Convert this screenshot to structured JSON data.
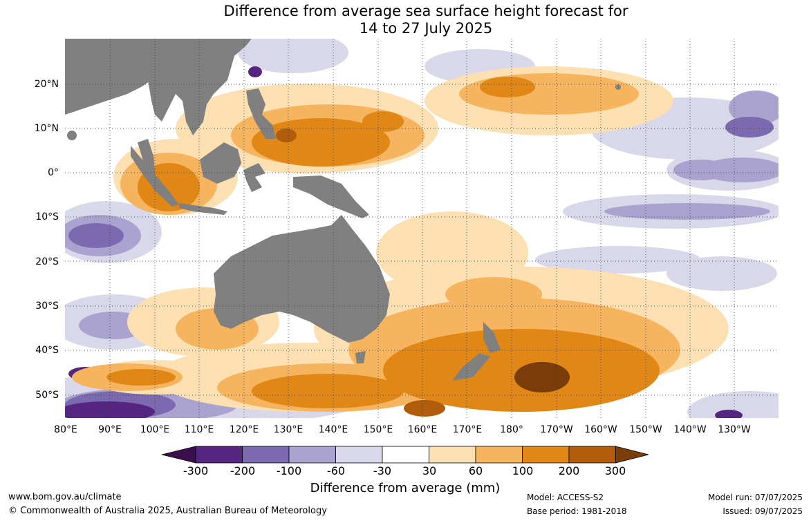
{
  "title": {
    "line1": "Difference from average sea surface height forecast for",
    "line2": "14 to 27 July 2025"
  },
  "lat_labels": [
    "20°N",
    "10°N",
    "0°",
    "10°S",
    "20°S",
    "30°S",
    "40°S",
    "50°S"
  ],
  "lon_labels": [
    "80°E",
    "90°E",
    "100°E",
    "110°E",
    "120°E",
    "130°E",
    "140°E",
    "150°E",
    "160°E",
    "170°E",
    "180°",
    "170°W",
    "160°W",
    "150°W",
    "140°W",
    "130°W"
  ],
  "colorbar": {
    "title": "Difference from average (mm)",
    "labels": [
      "-300",
      "-200",
      "-100",
      "-60",
      "-30",
      "30",
      "60",
      "100",
      "200",
      "300"
    ],
    "colors": [
      "#3b0f4f",
      "#54267f",
      "#7c6ab0",
      "#aaa3cf",
      "#d8d8ea",
      "#ffffff",
      "#fde0b2",
      "#f7b45e",
      "#e08716",
      "#b05c0a",
      "#7a3d0a"
    ]
  },
  "land_color": "#808080",
  "footer": {
    "website": "www.bom.gov.au/climate",
    "copyright": "© Commonwealth of Australia 2025, Australian Bureau of Meteorology",
    "model": "Model: ACCESS-S2",
    "base_period": "Base period: 1981-2018",
    "model_run": "Model run: 07/07/2025",
    "issued": "Issued: 09/07/2025"
  }
}
